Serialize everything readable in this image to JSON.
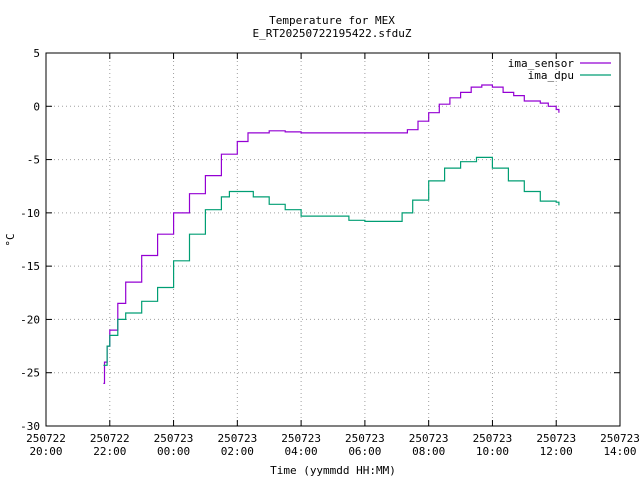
{
  "chart_data": {
    "type": "line",
    "title": "Temperature for MEX",
    "subtitle": "E_RT20250722195422.sfduZ",
    "xlabel": "Time (yymmdd HH:MM)",
    "ylabel": "°C",
    "ylim": [
      -30,
      5
    ],
    "yticks": [
      -30,
      -25,
      -20,
      -15,
      -10,
      -5,
      0,
      5
    ],
    "xlim": [
      "2025-07-22 20:00",
      "2025-07-23 14:00"
    ],
    "xticks": [
      {
        "date": "250722",
        "time": "20:00"
      },
      {
        "date": "250722",
        "time": "22:00"
      },
      {
        "date": "250723",
        "time": "00:00"
      },
      {
        "date": "250723",
        "time": "02:00"
      },
      {
        "date": "250723",
        "time": "04:00"
      },
      {
        "date": "250723",
        "time": "06:00"
      },
      {
        "date": "250723",
        "time": "08:00"
      },
      {
        "date": "250723",
        "time": "10:00"
      },
      {
        "date": "250723",
        "time": "12:00"
      },
      {
        "date": "250723",
        "time": "14:00"
      }
    ],
    "grid": true,
    "legend_position": "top-right",
    "series": [
      {
        "name": "ima_sensor",
        "color": "#9400d3",
        "points": [
          [
            "2025-07-22 21:48",
            -26.0
          ],
          [
            "2025-07-22 21:50",
            -24.0
          ],
          [
            "2025-07-22 21:55",
            -22.5
          ],
          [
            "2025-07-22 22:00",
            -21.0
          ],
          [
            "2025-07-22 22:15",
            -18.5
          ],
          [
            "2025-07-22 22:30",
            -16.5
          ],
          [
            "2025-07-22 23:00",
            -14.0
          ],
          [
            "2025-07-22 23:30",
            -12.0
          ],
          [
            "2025-07-23 00:00",
            -10.0
          ],
          [
            "2025-07-23 00:30",
            -8.2
          ],
          [
            "2025-07-23 01:00",
            -6.5
          ],
          [
            "2025-07-23 01:30",
            -4.5
          ],
          [
            "2025-07-23 02:00",
            -3.3
          ],
          [
            "2025-07-23 02:20",
            -2.5
          ],
          [
            "2025-07-23 03:00",
            -2.3
          ],
          [
            "2025-07-23 03:30",
            -2.4
          ],
          [
            "2025-07-23 04:00",
            -2.5
          ],
          [
            "2025-07-23 05:00",
            -2.5
          ],
          [
            "2025-07-23 06:00",
            -2.5
          ],
          [
            "2025-07-23 07:00",
            -2.5
          ],
          [
            "2025-07-23 07:20",
            -2.2
          ],
          [
            "2025-07-23 07:40",
            -1.4
          ],
          [
            "2025-07-23 08:00",
            -0.6
          ],
          [
            "2025-07-23 08:20",
            0.2
          ],
          [
            "2025-07-23 08:40",
            0.8
          ],
          [
            "2025-07-23 09:00",
            1.3
          ],
          [
            "2025-07-23 09:20",
            1.8
          ],
          [
            "2025-07-23 09:40",
            2.0
          ],
          [
            "2025-07-23 10:00",
            1.8
          ],
          [
            "2025-07-23 10:20",
            1.3
          ],
          [
            "2025-07-23 10:40",
            1.0
          ],
          [
            "2025-07-23 11:00",
            0.5
          ],
          [
            "2025-07-23 11:30",
            0.3
          ],
          [
            "2025-07-23 11:45",
            0.0
          ],
          [
            "2025-07-23 12:00",
            -0.3
          ],
          [
            "2025-07-23 12:05",
            -0.6
          ]
        ]
      },
      {
        "name": "ima_dpu",
        "color": "#009e73",
        "points": [
          [
            "2025-07-22 21:48",
            -24.3
          ],
          [
            "2025-07-22 21:55",
            -22.5
          ],
          [
            "2025-07-22 22:00",
            -21.5
          ],
          [
            "2025-07-22 22:15",
            -20.0
          ],
          [
            "2025-07-22 22:30",
            -19.4
          ],
          [
            "2025-07-22 23:00",
            -18.3
          ],
          [
            "2025-07-22 23:30",
            -17.0
          ],
          [
            "2025-07-23 00:00",
            -14.5
          ],
          [
            "2025-07-23 00:30",
            -12.0
          ],
          [
            "2025-07-23 01:00",
            -9.7
          ],
          [
            "2025-07-23 01:30",
            -8.5
          ],
          [
            "2025-07-23 01:45",
            -8.0
          ],
          [
            "2025-07-23 02:15",
            -8.0
          ],
          [
            "2025-07-23 02:30",
            -8.5
          ],
          [
            "2025-07-23 03:00",
            -9.2
          ],
          [
            "2025-07-23 03:30",
            -9.7
          ],
          [
            "2025-07-23 04:00",
            -10.3
          ],
          [
            "2025-07-23 05:00",
            -10.3
          ],
          [
            "2025-07-23 05:30",
            -10.7
          ],
          [
            "2025-07-23 06:00",
            -10.8
          ],
          [
            "2025-07-23 06:50",
            -10.8
          ],
          [
            "2025-07-23 07:10",
            -10.0
          ],
          [
            "2025-07-23 07:30",
            -8.8
          ],
          [
            "2025-07-23 08:00",
            -7.0
          ],
          [
            "2025-07-23 08:30",
            -5.8
          ],
          [
            "2025-07-23 09:00",
            -5.2
          ],
          [
            "2025-07-23 09:30",
            -4.8
          ],
          [
            "2025-07-23 10:00",
            -5.8
          ],
          [
            "2025-07-23 10:30",
            -7.0
          ],
          [
            "2025-07-23 11:00",
            -8.0
          ],
          [
            "2025-07-23 11:30",
            -8.9
          ],
          [
            "2025-07-23 12:00",
            -9.0
          ],
          [
            "2025-07-23 12:05",
            -9.3
          ]
        ]
      }
    ]
  }
}
